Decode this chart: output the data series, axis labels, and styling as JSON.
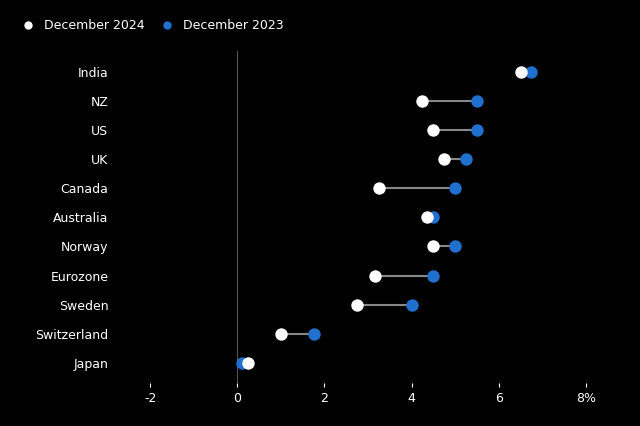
{
  "countries": [
    "India",
    "NZ",
    "US",
    "UK",
    "Canada",
    "Australia",
    "Norway",
    "Eurozone",
    "Sweden",
    "Switzerland",
    "Japan"
  ],
  "dec2024": [
    6.5,
    4.25,
    4.5,
    4.75,
    3.25,
    4.35,
    4.5,
    3.15,
    2.75,
    1.0,
    0.25
  ],
  "dec2023": [
    6.75,
    5.5,
    5.5,
    5.25,
    5.0,
    4.5,
    5.0,
    4.5,
    4.0,
    1.75,
    0.1
  ],
  "color_2024": "#ffffff",
  "color_2023": "#2070d0",
  "connector_color": "#888888",
  "background_color": "#000000",
  "text_color": "#ffffff",
  "vline_color": "#555555",
  "xlim": [
    -2.8,
    8.8
  ],
  "xticks": [
    -2,
    0,
    2,
    4,
    6,
    8
  ],
  "xticklabels": [
    "-2",
    "0",
    "2",
    "4",
    "6",
    "8%"
  ],
  "legend_label_2024": "December 2024",
  "legend_label_2023": "December 2023",
  "dot_size": 80,
  "connector_lw": 1.5,
  "fontsize_labels": 9,
  "fontsize_ticks": 9
}
